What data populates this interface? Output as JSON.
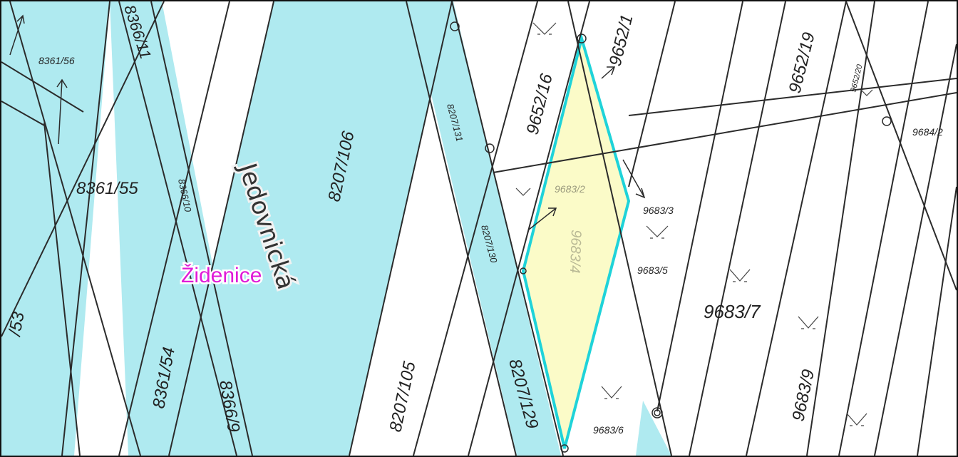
{
  "colors": {
    "water_fill": "#afeaf0",
    "selection_fill": "#fbfbc8",
    "selection_outline": "#1fd3d9",
    "line": "#2b2b2b",
    "locality": "#e01ad8",
    "background": "#ffffff"
  },
  "map": {
    "street_name": "Jedovnická",
    "locality_name": "Židenice",
    "parcels": {
      "p_8361_56": "8361/56",
      "p_8366_11": "8366/11",
      "p_8361_55": "8361/55",
      "p_8366_10": "8366/10",
      "p_8361_54": "8361/54",
      "p_8366_9": "8366/9",
      "p_53": "/53",
      "p_8207_106": "8207/106",
      "p_8207_105": "8207/105",
      "p_8207_131": "8207/131",
      "p_8207_130": "8207/130",
      "p_8207_129": "8207/129",
      "p_9652_16": "9652/16",
      "p_9652_1": "9652/1",
      "p_9652_19": "9652/19",
      "p_9652_20": "9652/20",
      "p_9684_2": "9684/2",
      "p_9683_2": "9683/2",
      "p_9683_3": "9683/3",
      "p_9683_5": "9683/5",
      "p_9683_7": "9683/7",
      "p_9683_9": "9683/9",
      "p_9683_6": "9683/6",
      "p_selected": "9683/4"
    }
  }
}
